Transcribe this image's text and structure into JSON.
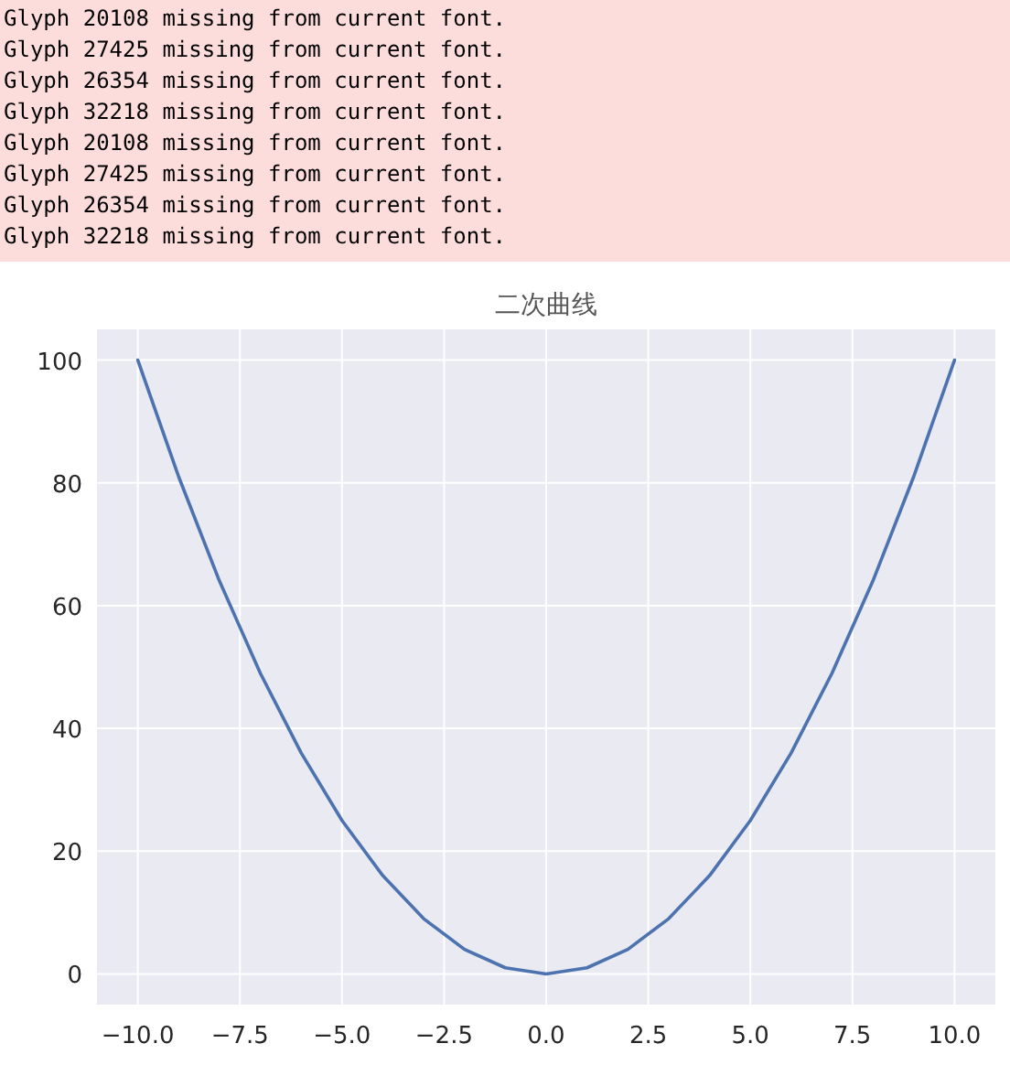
{
  "chart_data": {
    "type": "line",
    "title": "二次曲线",
    "annotations": [
      "Glyph 20108 missing from current font.",
      "Glyph 27425 missing from current font.",
      "Glyph 26354 missing from current font.",
      "Glyph 32218 missing from current font.",
      "Glyph 20108 missing from current font.",
      "Glyph 27425 missing from current font.",
      "Glyph 26354 missing from current font.",
      "Glyph 32218 missing from current font."
    ],
    "x": [
      -10,
      -9,
      -8,
      -7,
      -6,
      -5,
      -4,
      -3,
      -2,
      -1,
      0,
      1,
      2,
      3,
      4,
      5,
      6,
      7,
      8,
      9,
      10
    ],
    "values": [
      100,
      81,
      64,
      49,
      36,
      25,
      16,
      9,
      4,
      1,
      0,
      1,
      4,
      9,
      16,
      25,
      36,
      49,
      64,
      81,
      100
    ],
    "color": "#4c72b0",
    "xlim": [
      -11,
      11
    ],
    "ylim": [
      -5,
      105
    ],
    "xticks": [
      {
        "value": -10,
        "label": "−10.0"
      },
      {
        "value": -7.5,
        "label": "−7.5"
      },
      {
        "value": -5,
        "label": "−5.0"
      },
      {
        "value": -2.5,
        "label": "−2.5"
      },
      {
        "value": 0,
        "label": "0.0"
      },
      {
        "value": 2.5,
        "label": "2.5"
      },
      {
        "value": 5,
        "label": "5.0"
      },
      {
        "value": 7.5,
        "label": "7.5"
      },
      {
        "value": 10,
        "label": "10.0"
      }
    ],
    "yticks": [
      0,
      20,
      40,
      60,
      80,
      100
    ],
    "grid": true
  }
}
